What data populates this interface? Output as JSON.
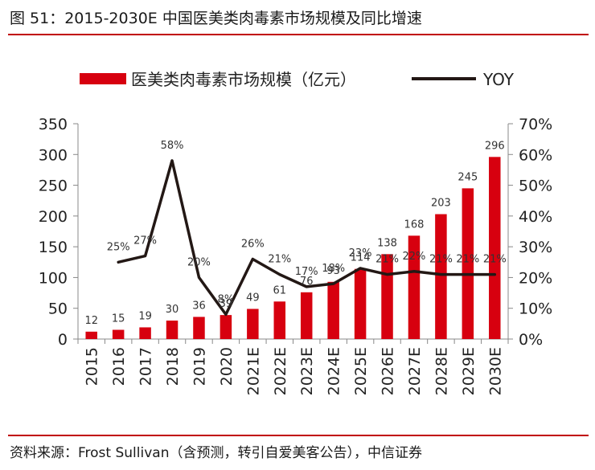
{
  "figure": {
    "title": "图 51：2015-2030E 中国医美类肉毒素市场规模及同比增速",
    "source": "资料来源：Frost Sullivan（含预测，转引自爱美客公告），中信证券"
  },
  "chart_data": {
    "type": "bar",
    "categories": [
      "2015",
      "2016",
      "2017",
      "2018",
      "2019",
      "2020",
      "2021E",
      "2022E",
      "2023E",
      "2024E",
      "2025E",
      "2026E",
      "2027E",
      "2028E",
      "2029E",
      "2030E"
    ],
    "series": [
      {
        "name": "医美类肉毒素市场规模（亿元）",
        "type": "bar",
        "axis": "left",
        "color": "#d7000f",
        "values": [
          12,
          15,
          19,
          30,
          36,
          39,
          49,
          61,
          76,
          93,
          114,
          138,
          168,
          203,
          245,
          296
        ],
        "labels": [
          "12",
          "15",
          "19",
          "30",
          "36",
          "39",
          "49",
          "61",
          "76",
          "93",
          "114",
          "138",
          "168",
          "203",
          "245",
          "296"
        ]
      },
      {
        "name": "YOY",
        "type": "line",
        "axis": "right",
        "color": "#231815",
        "values": [
          null,
          25,
          27,
          58,
          20,
          8,
          26,
          21,
          17,
          18,
          23,
          21,
          22,
          21,
          21,
          21
        ],
        "labels": [
          "",
          "25%",
          "27%",
          "58%",
          "20%",
          "8%",
          "26%",
          "21%",
          "17%",
          "18%",
          "23%",
          "21%",
          "22%",
          "21%",
          "21%",
          "21%"
        ]
      }
    ],
    "y_left": {
      "min": 0,
      "max": 350,
      "ticks": [
        0,
        50,
        100,
        150,
        200,
        250,
        300,
        350
      ],
      "tick_labels": [
        "0",
        "50",
        "100",
        "150",
        "200",
        "250",
        "300",
        "350"
      ]
    },
    "y_right": {
      "min": 0,
      "max": 70,
      "ticks": [
        0,
        10,
        20,
        30,
        40,
        50,
        60,
        70
      ],
      "tick_labels": [
        "0%",
        "10%",
        "20%",
        "30%",
        "40%",
        "50%",
        "60%",
        "70%"
      ]
    },
    "grid": false,
    "legend_position": "top"
  }
}
